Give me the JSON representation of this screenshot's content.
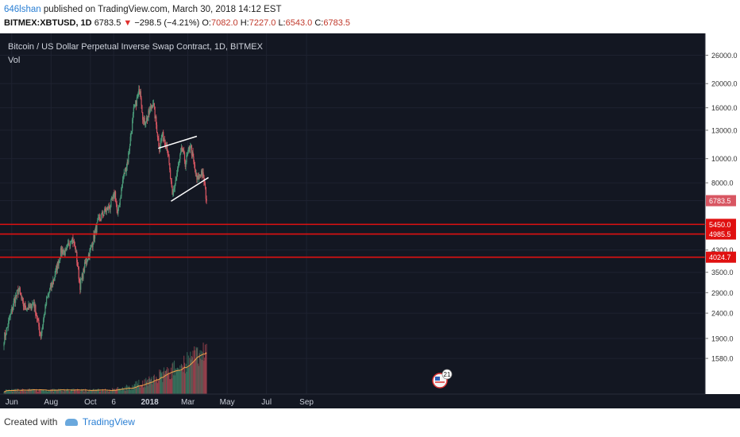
{
  "header": {
    "user": "646lshan",
    "published": "published on TradingView.com, March 30, 2018 14:12 EST",
    "symbol": "BITMEX:XBTUSD, 1D",
    "last": "6783.5",
    "down_arrow": "▼",
    "change": "−298.5 (−4.21%)",
    "o_label": "O:",
    "o_val": "7082.0",
    "h_label": "H:",
    "h_val": "7227.0",
    "l_label": "L:",
    "l_val": "6543.0",
    "c_label": "C:",
    "c_val": "6783.5"
  },
  "footer": {
    "created_with": "Created with",
    "brand": "TradingView"
  },
  "chart_data": {
    "type": "candlestick",
    "title": "Bitcoin / US Dollar Perpetual Inverse Swap Contract, 1D, BITMEX",
    "indicator_label": "Vol",
    "y_scale": "log",
    "ylim": [
      1250,
      30000
    ],
    "y_ticks": [
      1580,
      1900,
      2400,
      2900,
      3500,
      4300,
      5450,
      6783.5,
      8000,
      10000,
      13000,
      16000,
      20000,
      26000
    ],
    "y_tick_labels": [
      "1580.0",
      "1900.0",
      "2400.0",
      "2900.0",
      "3500.0",
      "4300.0",
      "5450.0",
      "6783.5",
      "8000.0",
      "10000.0",
      "13000.0",
      "16000.0",
      "20000.0",
      "26000.0"
    ],
    "x_ticks": [
      "Jun",
      "Aug",
      "Oct",
      "6",
      "2018",
      "Mar",
      "May",
      "Jul",
      "Sep"
    ],
    "x_tick_dates": [
      "2017-06-01",
      "2017-08-01",
      "2017-10-01",
      "2017-11-06",
      "2018-01-01",
      "2018-03-01",
      "2018-05-01",
      "2018-07-01",
      "2018-09-01"
    ],
    "anchors": [
      [
        "2017-05-20",
        1900
      ],
      [
        "2017-05-25",
        2100
      ],
      [
        "2017-06-05",
        2700
      ],
      [
        "2017-06-12",
        3000
      ],
      [
        "2017-06-18",
        2600
      ],
      [
        "2017-06-28",
        2500
      ],
      [
        "2017-07-05",
        2650
      ],
      [
        "2017-07-16",
        1950
      ],
      [
        "2017-07-25",
        2700
      ],
      [
        "2017-08-05",
        3300
      ],
      [
        "2017-08-17",
        4300
      ],
      [
        "2017-08-24",
        4200
      ],
      [
        "2017-09-02",
        4900
      ],
      [
        "2017-09-08",
        4300
      ],
      [
        "2017-09-15",
        3100
      ],
      [
        "2017-09-22",
        3700
      ],
      [
        "2017-10-02",
        4400
      ],
      [
        "2017-10-12",
        5500
      ],
      [
        "2017-10-20",
        6000
      ],
      [
        "2017-10-31",
        6400
      ],
      [
        "2017-11-08",
        7300
      ],
      [
        "2017-11-12",
        5900
      ],
      [
        "2017-11-20",
        8200
      ],
      [
        "2017-11-28",
        9900
      ],
      [
        "2017-12-07",
        15500
      ],
      [
        "2017-12-17",
        19200
      ],
      [
        "2017-12-22",
        14000
      ],
      [
        "2017-12-28",
        14500
      ],
      [
        "2018-01-06",
        17000
      ],
      [
        "2018-01-16",
        11000
      ],
      [
        "2018-01-20",
        12500
      ],
      [
        "2018-01-28",
        11200
      ],
      [
        "2018-02-05",
        7000
      ],
      [
        "2018-02-10",
        8200
      ],
      [
        "2018-02-20",
        11000
      ],
      [
        "2018-02-25",
        9600
      ],
      [
        "2018-03-05",
        11400
      ],
      [
        "2018-03-12",
        9000
      ],
      [
        "2018-03-15",
        8200
      ],
      [
        "2018-03-22",
        8900
      ],
      [
        "2018-03-26",
        8200
      ],
      [
        "2018-03-30",
        6783.5
      ]
    ],
    "support_lines": [
      5450,
      4985.5,
      4024.7
    ],
    "support_labels": [
      "5450.0",
      "4985.5",
      "4024.7"
    ],
    "last_price_label": "6783.5",
    "channel_lines": [
      [
        [
          "2018-01-14",
          11000
        ],
        [
          "2018-03-15",
          12300
        ]
      ],
      [
        [
          "2018-02-03",
          6750
        ],
        [
          "2018-04-02",
          8400
        ]
      ]
    ],
    "volume_ma_label": "Volume MA",
    "event_badge": "21",
    "colors": {
      "up": "#4a9a78",
      "down": "#d85662",
      "background": "#131722",
      "grid": "#1e2230",
      "support": "#e01010",
      "volume_ma": "#f0a34a",
      "channel": "#ffffff"
    }
  }
}
